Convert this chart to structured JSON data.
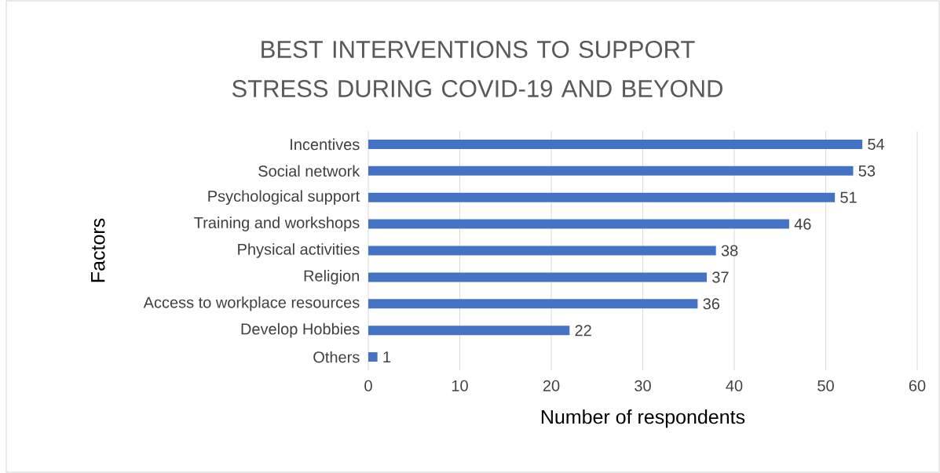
{
  "chart_data": {
    "type": "bar",
    "orientation": "horizontal",
    "title": "BEST INTERVENTIONS TO SUPPORT STRESS DURING COVID-19 AND BEYOND",
    "xlabel": "Number of respondents",
    "ylabel": "Factors",
    "categories": [
      "Incentives",
      "Social network",
      "Psychological support",
      "Training and workshops",
      "Physical activities",
      "Religion",
      "Access to workplace resources",
      "Develop Hobbies",
      "Others"
    ],
    "values": [
      54,
      53,
      51,
      46,
      38,
      37,
      36,
      22,
      1
    ],
    "color": "#4472c4",
    "xlim": [
      0,
      60
    ],
    "xticks": [
      0,
      10,
      20,
      30,
      40,
      50,
      60
    ],
    "grid": "x",
    "data_labels": true
  }
}
